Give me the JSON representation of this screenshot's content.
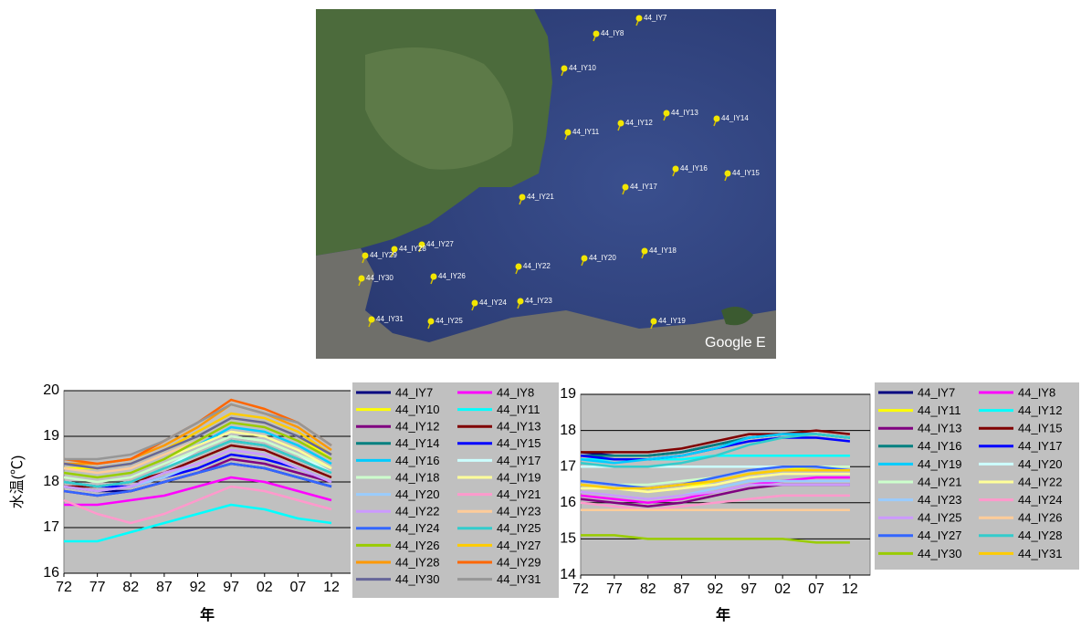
{
  "map": {
    "pins": [
      "44_IY7",
      "44_IY8",
      "44_IY10",
      "44_IY11",
      "44_IY12",
      "44_IY13",
      "44_IY14",
      "44_IY16",
      "44_IY15",
      "44_IY17",
      "44_IY21",
      "44_IY18",
      "44_IY20",
      "44_IY22",
      "44_IY23",
      "44_IY24",
      "44_IY25",
      "44_IY26",
      "44_IY27",
      "44_IY28",
      "44_IY29",
      "44_IY30",
      "44_IY31",
      "44_IY19"
    ],
    "attribution": "Google E"
  },
  "chart_data": [
    {
      "type": "line",
      "ylabel": "水温(℃)",
      "xlabel": "年",
      "categories": [
        "72",
        "77",
        "82",
        "87",
        "92",
        "97",
        "02",
        "07",
        "12"
      ],
      "ylim": [
        16,
        20
      ],
      "yticks": [
        16,
        17,
        18,
        19,
        20
      ],
      "grid": true,
      "legend_position": "right",
      "series": [
        {
          "name": "44_IY7",
          "color": "#000080",
          "values": [
            17.9,
            17.8,
            17.8,
            18.0,
            18.2,
            18.4,
            18.3,
            18.1,
            17.9
          ]
        },
        {
          "name": "44_IY8",
          "color": "#ff00ff",
          "values": [
            17.5,
            17.5,
            17.6,
            17.7,
            17.9,
            18.1,
            18.0,
            17.8,
            17.6
          ]
        },
        {
          "name": "44_IY10",
          "color": "#ffff00",
          "values": [
            18.3,
            18.3,
            18.4,
            18.7,
            19.0,
            19.4,
            19.3,
            19.0,
            18.5
          ]
        },
        {
          "name": "44_IY11",
          "color": "#00ffff",
          "values": [
            16.7,
            16.7,
            16.9,
            17.1,
            17.3,
            17.5,
            17.4,
            17.2,
            17.1
          ]
        },
        {
          "name": "44_IY12",
          "color": "#800080",
          "values": [
            17.8,
            17.7,
            17.8,
            18.0,
            18.2,
            18.5,
            18.4,
            18.2,
            18.0
          ]
        },
        {
          "name": "44_IY13",
          "color": "#800000",
          "values": [
            17.9,
            17.9,
            18.0,
            18.2,
            18.5,
            18.8,
            18.7,
            18.4,
            18.1
          ]
        },
        {
          "name": "44_IY14",
          "color": "#008080",
          "values": [
            18.0,
            17.9,
            18.0,
            18.3,
            18.6,
            18.9,
            18.8,
            18.5,
            18.2
          ]
        },
        {
          "name": "44_IY15",
          "color": "#0000ff",
          "values": [
            18.0,
            17.9,
            17.9,
            18.1,
            18.3,
            18.6,
            18.5,
            18.3,
            18.0
          ]
        },
        {
          "name": "44_IY16",
          "color": "#00ccff",
          "values": [
            18.2,
            18.1,
            18.2,
            18.5,
            18.8,
            19.2,
            19.1,
            18.8,
            18.4
          ]
        },
        {
          "name": "44_IY17",
          "color": "#ccffff",
          "values": [
            18.0,
            17.9,
            18.0,
            18.3,
            18.7,
            19.0,
            18.9,
            18.6,
            18.2
          ]
        },
        {
          "name": "44_IY18",
          "color": "#ccffcc",
          "values": [
            18.1,
            18.0,
            18.1,
            18.4,
            18.7,
            19.0,
            18.9,
            18.6,
            18.3
          ]
        },
        {
          "name": "44_IY19",
          "color": "#ffff99",
          "values": [
            18.2,
            18.1,
            18.2,
            18.5,
            18.8,
            19.1,
            19.0,
            18.7,
            18.3
          ]
        },
        {
          "name": "44_IY20",
          "color": "#99ccff",
          "values": [
            17.9,
            17.8,
            17.9,
            18.1,
            18.4,
            18.7,
            18.6,
            18.3,
            18.0
          ]
        },
        {
          "name": "44_IY21",
          "color": "#ff99cc",
          "values": [
            17.6,
            17.3,
            17.1,
            17.3,
            17.6,
            17.9,
            17.8,
            17.6,
            17.4
          ]
        },
        {
          "name": "44_IY22",
          "color": "#cc99ff",
          "values": [
            17.9,
            17.8,
            17.9,
            18.2,
            18.4,
            18.7,
            18.6,
            18.3,
            18.0
          ]
        },
        {
          "name": "44_IY23",
          "color": "#ffcc99",
          "values": [
            18.3,
            18.2,
            18.3,
            18.6,
            18.9,
            19.3,
            19.2,
            18.9,
            18.5
          ]
        },
        {
          "name": "44_IY24",
          "color": "#3366ff",
          "values": [
            17.8,
            17.7,
            17.8,
            18.0,
            18.2,
            18.4,
            18.3,
            18.1,
            17.9
          ]
        },
        {
          "name": "44_IY25",
          "color": "#33cccc",
          "values": [
            18.0,
            17.9,
            18.0,
            18.3,
            18.6,
            18.9,
            18.8,
            18.5,
            18.2
          ]
        },
        {
          "name": "44_IY26",
          "color": "#99cc00",
          "values": [
            18.2,
            18.1,
            18.2,
            18.5,
            18.9,
            19.3,
            19.2,
            18.9,
            18.5
          ]
        },
        {
          "name": "44_IY27",
          "color": "#ffcc00",
          "values": [
            18.4,
            18.3,
            18.4,
            18.7,
            19.1,
            19.5,
            19.4,
            19.1,
            18.6
          ]
        },
        {
          "name": "44_IY28",
          "color": "#ff9900",
          "values": [
            18.4,
            18.4,
            18.5,
            18.8,
            19.2,
            19.7,
            19.5,
            19.2,
            18.7
          ]
        },
        {
          "name": "44_IY29",
          "color": "#ff6600",
          "values": [
            18.5,
            18.4,
            18.5,
            18.9,
            19.3,
            19.8,
            19.6,
            19.3,
            18.8
          ]
        },
        {
          "name": "44_IY30",
          "color": "#666699",
          "values": [
            18.4,
            18.3,
            18.4,
            18.7,
            19.0,
            19.4,
            19.3,
            19.0,
            18.6
          ]
        },
        {
          "name": "44_IY31",
          "color": "#969696",
          "values": [
            18.5,
            18.5,
            18.6,
            18.9,
            19.3,
            19.7,
            19.5,
            19.3,
            18.8
          ]
        }
      ]
    },
    {
      "type": "line",
      "xlabel": "年",
      "categories": [
        "72",
        "77",
        "82",
        "87",
        "92",
        "97",
        "02",
        "07",
        "12"
      ],
      "ylim": [
        14,
        19
      ],
      "yticks": [
        14,
        15,
        16,
        17,
        18,
        19
      ],
      "grid": true,
      "legend_position": "right",
      "series": [
        {
          "name": "44_IY7",
          "color": "#000080",
          "values": [
            17.4,
            17.3,
            17.3,
            17.4,
            17.6,
            17.8,
            17.9,
            17.9,
            17.8
          ]
        },
        {
          "name": "44_IY8",
          "color": "#ff00ff",
          "values": [
            16.2,
            16.1,
            16.0,
            16.1,
            16.3,
            16.5,
            16.6,
            16.7,
            16.7
          ]
        },
        {
          "name": "44_IY11",
          "color": "#ffff00",
          "values": [
            16.5,
            16.4,
            16.3,
            16.4,
            16.6,
            16.8,
            16.9,
            17.0,
            17.0
          ]
        },
        {
          "name": "44_IY12",
          "color": "#00ffff",
          "values": [
            17.2,
            17.2,
            17.2,
            17.2,
            17.3,
            17.3,
            17.3,
            17.3,
            17.3
          ]
        },
        {
          "name": "44_IY13",
          "color": "#800080",
          "values": [
            16.1,
            16.0,
            15.9,
            16.0,
            16.2,
            16.4,
            16.5,
            16.5,
            16.5
          ]
        },
        {
          "name": "44_IY15",
          "color": "#800000",
          "values": [
            17.4,
            17.4,
            17.4,
            17.5,
            17.7,
            17.9,
            17.9,
            18.0,
            17.9
          ]
        },
        {
          "name": "44_IY16",
          "color": "#008080",
          "values": [
            17.3,
            17.3,
            17.3,
            17.4,
            17.6,
            17.8,
            17.9,
            17.9,
            17.8
          ]
        },
        {
          "name": "44_IY17",
          "color": "#0000ff",
          "values": [
            17.3,
            17.2,
            17.2,
            17.3,
            17.5,
            17.7,
            17.8,
            17.8,
            17.7
          ]
        },
        {
          "name": "44_IY19",
          "color": "#00ccff",
          "values": [
            17.2,
            17.1,
            17.2,
            17.3,
            17.5,
            17.8,
            17.9,
            17.9,
            17.8
          ]
        },
        {
          "name": "44_IY20",
          "color": "#ccffff",
          "values": [
            17.0,
            17.0,
            17.0,
            17.0,
            17.0,
            17.0,
            17.0,
            17.0,
            17.0
          ]
        },
        {
          "name": "44_IY21",
          "color": "#ccffcc",
          "values": [
            16.6,
            16.5,
            16.5,
            16.6,
            16.7,
            16.9,
            17.0,
            17.0,
            17.0
          ]
        },
        {
          "name": "44_IY22",
          "color": "#ffff99",
          "values": [
            16.4,
            16.4,
            16.3,
            16.4,
            16.5,
            16.7,
            16.8,
            16.8,
            16.8
          ]
        },
        {
          "name": "44_IY23",
          "color": "#99ccff",
          "values": [
            16.3,
            16.2,
            16.1,
            16.2,
            16.4,
            16.6,
            16.6,
            16.6,
            16.6
          ]
        },
        {
          "name": "44_IY24",
          "color": "#ff99cc",
          "values": [
            16.0,
            15.9,
            15.8,
            15.9,
            16.0,
            16.1,
            16.2,
            16.2,
            16.2
          ]
        },
        {
          "name": "44_IY25",
          "color": "#cc99ff",
          "values": [
            16.3,
            16.2,
            16.1,
            16.2,
            16.3,
            16.5,
            16.5,
            16.5,
            16.5
          ]
        },
        {
          "name": "44_IY26",
          "color": "#ffcc99",
          "values": [
            15.8,
            15.8,
            15.8,
            15.8,
            15.8,
            15.8,
            15.8,
            15.8,
            15.8
          ]
        },
        {
          "name": "44_IY27",
          "color": "#3366ff",
          "values": [
            16.6,
            16.5,
            16.4,
            16.5,
            16.7,
            16.9,
            17.0,
            17.0,
            16.9
          ]
        },
        {
          "name": "44_IY28",
          "color": "#33cccc",
          "values": [
            17.1,
            17.0,
            17.0,
            17.1,
            17.3,
            17.6,
            17.8,
            17.9,
            17.8
          ]
        },
        {
          "name": "44_IY30",
          "color": "#99cc00",
          "values": [
            15.1,
            15.1,
            15.0,
            15.0,
            15.0,
            15.0,
            15.0,
            14.9,
            14.9
          ]
        },
        {
          "name": "44_IY31",
          "color": "#ffcc00",
          "values": [
            16.5,
            16.4,
            16.4,
            16.5,
            16.6,
            16.8,
            16.9,
            16.9,
            16.9
          ]
        }
      ]
    }
  ]
}
